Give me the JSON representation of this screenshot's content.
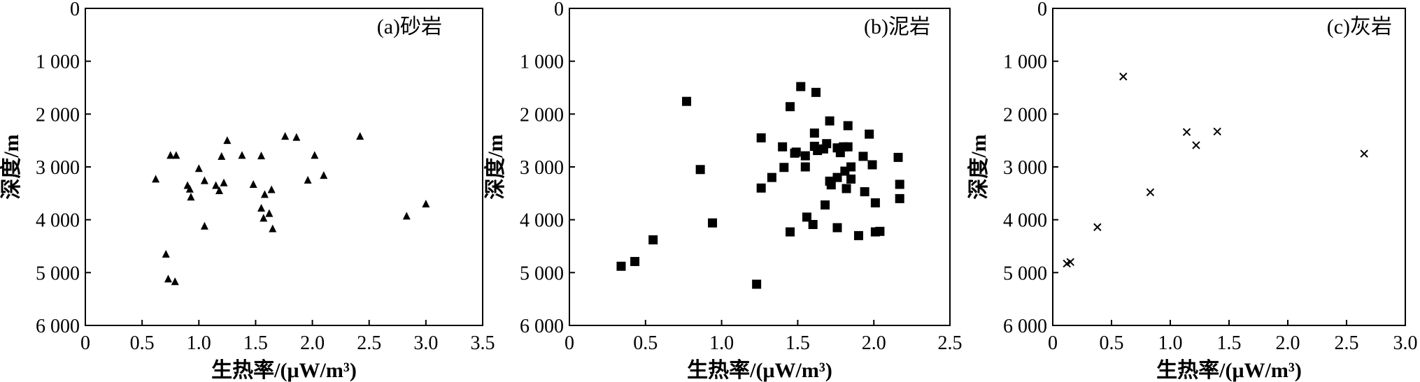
{
  "chart_data": [
    {
      "type": "scatter",
      "title": "(a)砂岩",
      "xlabel": "生热率/(μW/m³)",
      "ylabel": "深度/m",
      "xlim": [
        0,
        3.5
      ],
      "ylim": [
        0,
        6000
      ],
      "y_inverted": true,
      "xticks": [
        "0",
        "0.5",
        "1.0",
        "1.5",
        "2.0",
        "2.5",
        "3.0",
        "3.5"
      ],
      "yticks": [
        "0",
        "1 000",
        "2 000",
        "3 000",
        "4 000",
        "5 000",
        "6 000"
      ],
      "marker": "triangle",
      "points": [
        [
          0.62,
          3230
        ],
        [
          0.71,
          4650
        ],
        [
          0.73,
          5120
        ],
        [
          0.75,
          2780
        ],
        [
          0.8,
          2780
        ],
        [
          0.79,
          5170
        ],
        [
          0.9,
          3350
        ],
        [
          0.92,
          3420
        ],
        [
          0.93,
          3570
        ],
        [
          1.0,
          3030
        ],
        [
          1.05,
          3260
        ],
        [
          1.05,
          4120
        ],
        [
          1.15,
          3350
        ],
        [
          1.18,
          3450
        ],
        [
          1.2,
          2800
        ],
        [
          1.22,
          3300
        ],
        [
          1.25,
          2500
        ],
        [
          1.38,
          2780
        ],
        [
          1.48,
          3330
        ],
        [
          1.55,
          2790
        ],
        [
          1.55,
          3780
        ],
        [
          1.57,
          3970
        ],
        [
          1.58,
          3520
        ],
        [
          1.62,
          3880
        ],
        [
          1.64,
          3430
        ],
        [
          1.65,
          4170
        ],
        [
          1.76,
          2420
        ],
        [
          1.86,
          2440
        ],
        [
          1.96,
          3250
        ],
        [
          2.02,
          2780
        ],
        [
          2.1,
          3160
        ],
        [
          2.42,
          2420
        ],
        [
          2.83,
          3930
        ],
        [
          3.0,
          3700
        ]
      ]
    },
    {
      "type": "scatter",
      "title": "(b)泥岩",
      "xlabel": "生热率/(μW/m³)",
      "ylabel": "深度/m",
      "xlim": [
        0,
        2.5
      ],
      "ylim": [
        0,
        6000
      ],
      "y_inverted": true,
      "xticks": [
        "0",
        "0.5",
        "1.0",
        "1.5",
        "2.0",
        "2.5"
      ],
      "yticks": [
        "0",
        "1 000",
        "2 000",
        "3 000",
        "4 000",
        "5 000",
        "6 000"
      ],
      "marker": "square",
      "points": [
        [
          0.34,
          4880
        ],
        [
          0.43,
          4790
        ],
        [
          0.55,
          4380
        ],
        [
          0.77,
          1760
        ],
        [
          0.86,
          3050
        ],
        [
          0.94,
          4060
        ],
        [
          1.23,
          5220
        ],
        [
          1.26,
          2450
        ],
        [
          1.26,
          3400
        ],
        [
          1.33,
          3200
        ],
        [
          1.4,
          2620
        ],
        [
          1.41,
          3010
        ],
        [
          1.45,
          1860
        ],
        [
          1.45,
          4230
        ],
        [
          1.48,
          2740
        ],
        [
          1.49,
          2720
        ],
        [
          1.52,
          1480
        ],
        [
          1.55,
          2790
        ],
        [
          1.55,
          3000
        ],
        [
          1.56,
          3950
        ],
        [
          1.6,
          4090
        ],
        [
          1.61,
          2360
        ],
        [
          1.61,
          2610
        ],
        [
          1.62,
          1590
        ],
        [
          1.63,
          2690
        ],
        [
          1.67,
          2660
        ],
        [
          1.68,
          3720
        ],
        [
          1.69,
          2560
        ],
        [
          1.71,
          2130
        ],
        [
          1.71,
          3270
        ],
        [
          1.72,
          3340
        ],
        [
          1.76,
          4150
        ],
        [
          1.76,
          2640
        ],
        [
          1.76,
          3200
        ],
        [
          1.78,
          2730
        ],
        [
          1.8,
          2620
        ],
        [
          1.81,
          3080
        ],
        [
          1.82,
          3410
        ],
        [
          1.83,
          2220
        ],
        [
          1.83,
          2620
        ],
        [
          1.85,
          3000
        ],
        [
          1.85,
          3230
        ],
        [
          1.9,
          4300
        ],
        [
          1.93,
          2800
        ],
        [
          1.94,
          3470
        ],
        [
          1.97,
          2380
        ],
        [
          1.99,
          2960
        ],
        [
          2.01,
          4230
        ],
        [
          2.01,
          3680
        ],
        [
          2.04,
          4220
        ],
        [
          2.16,
          2820
        ],
        [
          2.17,
          3330
        ],
        [
          2.17,
          3600
        ]
      ]
    },
    {
      "type": "scatter",
      "title": "(c)灰岩",
      "xlabel": "生热率/(μW/m³)",
      "ylabel": "深度/m",
      "xlim": [
        0,
        3.0
      ],
      "ylim": [
        0,
        6000
      ],
      "y_inverted": true,
      "xticks": [
        "0",
        "0.5",
        "1.0",
        "1.5",
        "2.0",
        "2.5",
        "3.0"
      ],
      "yticks": [
        "0",
        "1 000",
        "2 000",
        "3 000",
        "4 000",
        "5 000",
        "6 000"
      ],
      "marker": "x",
      "points": [
        [
          0.12,
          4830
        ],
        [
          0.15,
          4800
        ],
        [
          0.38,
          4140
        ],
        [
          0.6,
          1290
        ],
        [
          0.83,
          3480
        ],
        [
          1.14,
          2340
        ],
        [
          1.22,
          2590
        ],
        [
          1.4,
          2330
        ],
        [
          2.65,
          2750
        ]
      ]
    }
  ]
}
